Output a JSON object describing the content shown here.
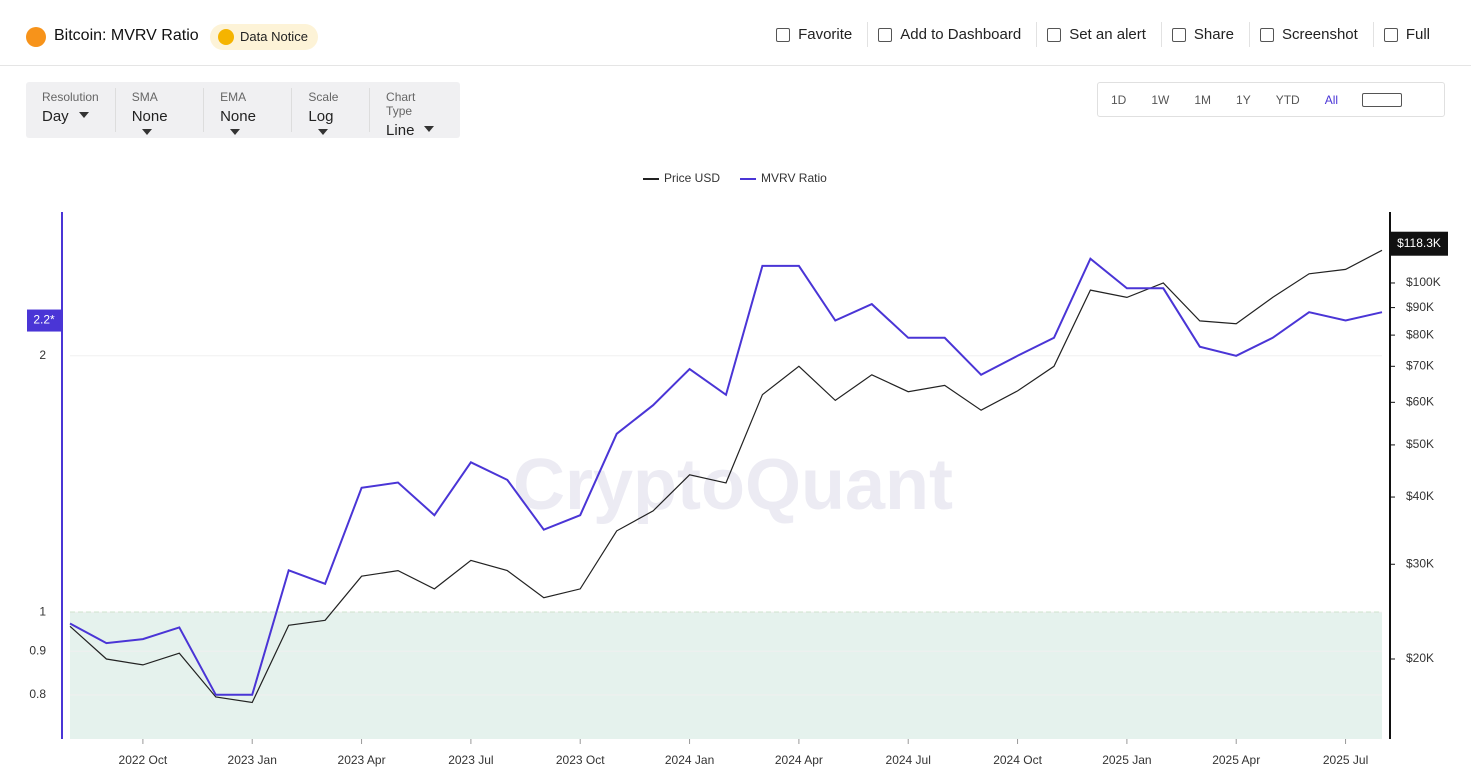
{
  "header": {
    "title": "Bitcoin: MVRV Ratio",
    "notice": "Data Notice",
    "actions": [
      "Favorite",
      "Add to Dashboard",
      "Set an alert",
      "Share",
      "Screenshot",
      "Full"
    ]
  },
  "toolbar": {
    "controls": [
      {
        "label": "Resolution",
        "value": "Day"
      },
      {
        "label": "SMA",
        "value": "None"
      },
      {
        "label": "EMA",
        "value": "None"
      },
      {
        "label": "Scale",
        "value": "Log"
      },
      {
        "label": "Chart Type",
        "value": "Line"
      }
    ],
    "ranges": [
      "1D",
      "1W",
      "1M",
      "1Y",
      "YTD",
      "All"
    ],
    "active_range": 5
  },
  "chart_data": {
    "type": "line",
    "watermark": "CryptoQuant",
    "x": [
      "2022-08",
      "2022-09",
      "2022-10",
      "2022-11",
      "2022-12",
      "2023-01",
      "2023-02",
      "2023-03",
      "2023-04",
      "2023-05",
      "2023-06",
      "2023-07",
      "2023-08",
      "2023-09",
      "2023-10",
      "2023-11",
      "2023-12",
      "2024-01",
      "2024-02",
      "2024-03",
      "2024-04",
      "2024-05",
      "2024-06",
      "2024-07",
      "2024-08",
      "2024-09",
      "2024-10",
      "2024-11",
      "2024-12",
      "2025-01",
      "2025-02",
      "2025-03",
      "2025-04",
      "2025-05",
      "2025-06",
      "2025-07",
      "2025-08"
    ],
    "xlim": [
      "2022-08",
      "2025-08"
    ],
    "xticks": [
      {
        "value": "2022-10",
        "label": "2022 Oct"
      },
      {
        "value": "2023-01",
        "label": "2023 Jan"
      },
      {
        "value": "2023-04",
        "label": "2023 Apr"
      },
      {
        "value": "2023-07",
        "label": "2023 Jul"
      },
      {
        "value": "2023-10",
        "label": "2023 Oct"
      },
      {
        "value": "2024-01",
        "label": "2024 Jan"
      },
      {
        "value": "2024-04",
        "label": "2024 Apr"
      },
      {
        "value": "2024-07",
        "label": "2024 Jul"
      },
      {
        "value": "2024-10",
        "label": "2024 Oct"
      },
      {
        "value": "2025-01",
        "label": "2025 Jan"
      },
      {
        "value": "2025-04",
        "label": "2025 Apr"
      },
      {
        "value": "2025-07",
        "label": "2025 Jul"
      }
    ],
    "series": [
      {
        "name": "Price USD",
        "color": "#222222",
        "axis": "y2",
        "values": [
          23000,
          20000,
          19500,
          20500,
          17000,
          16600,
          23100,
          23600,
          28500,
          29200,
          27000,
          30500,
          29200,
          26000,
          27000,
          34600,
          37700,
          44000,
          42500,
          62000,
          70000,
          60500,
          67500,
          62800,
          64500,
          58000,
          63000,
          70000,
          97000,
          94000,
          100000,
          85000,
          84000,
          94000,
          104000,
          106000,
          115000
        ]
      },
      {
        "name": "MVRV Ratio",
        "color": "#4a35d6",
        "values": [
          0.97,
          0.92,
          0.93,
          0.96,
          0.8,
          0.8,
          1.12,
          1.08,
          1.4,
          1.42,
          1.3,
          1.5,
          1.43,
          1.25,
          1.3,
          1.62,
          1.75,
          1.93,
          1.8,
          2.55,
          2.55,
          2.2,
          2.3,
          2.1,
          2.1,
          1.9,
          2.0,
          2.1,
          2.6,
          2.4,
          2.4,
          2.05,
          2.0,
          2.1,
          2.25,
          2.2,
          2.25
        ]
      }
    ],
    "yscale": "log",
    "ylim": [
      0.71,
      2.95
    ],
    "yticks": [
      0.8,
      0.9,
      1,
      2
    ],
    "y2scale": "log",
    "y2lim": [
      14200,
      135500
    ],
    "y2ticks": [
      {
        "value": 20000,
        "label": "$20K"
      },
      {
        "value": 30000,
        "label": "$30K"
      },
      {
        "value": 40000,
        "label": "$40K"
      },
      {
        "value": 50000,
        "label": "$50K"
      },
      {
        "value": 60000,
        "label": "$60K"
      },
      {
        "value": 70000,
        "label": "$70K"
      },
      {
        "value": 80000,
        "label": "$80K"
      },
      {
        "value": 90000,
        "label": "$90K"
      },
      {
        "value": 100000,
        "label": "$100K"
      }
    ],
    "y_marker": {
      "value": 2.2,
      "label": "2.2*"
    },
    "y2_marker": {
      "value": 118300,
      "label": "$118.3K"
    },
    "threshold": 1,
    "grid": true,
    "legend": "top"
  }
}
